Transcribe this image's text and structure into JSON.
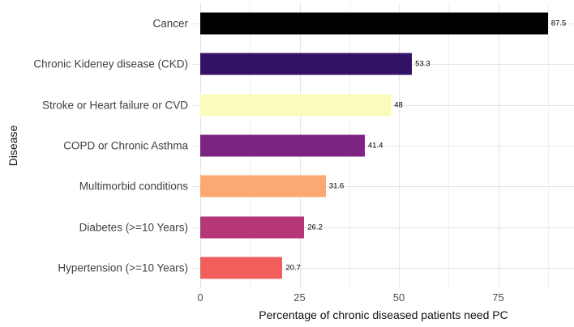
{
  "chart_data": {
    "type": "bar",
    "orientation": "horizontal",
    "title": "",
    "xlabel": "Percentage of chronic diseased patients need PC",
    "ylabel": "Disease",
    "categories": [
      "Cancer",
      "Chronic Kideney disease (CKD)",
      "Stroke or Heart failure or CVD",
      "COPD or Chronic Asthma",
      "Multimorbid conditions",
      "Diabetes (>=10 Years)",
      "Hypertension (>=10 Years)"
    ],
    "values": [
      87.5,
      53.3,
      48,
      41.4,
      31.6,
      26.2,
      20.7
    ],
    "value_labels": [
      "87.5",
      "53.3",
      "48",
      "41.4",
      "31.6",
      "26.2",
      "20.7"
    ],
    "bar_colors": [
      "#000000",
      "#331166",
      "#fbfcbb",
      "#7d2482",
      "#fca872",
      "#b53778",
      "#f15e5b"
    ],
    "x_ticks": [
      0,
      25,
      50,
      75
    ],
    "x_tick_labels": [
      "0",
      "25",
      "50",
      "75"
    ],
    "x_minor_ticks": [
      12.5,
      37.5,
      62.5,
      87.5
    ],
    "xlim": [
      0,
      94
    ],
    "grid": true,
    "legend": "none",
    "grid_major_color": "#e4e4e4",
    "grid_minor_color": "#f0f0f0",
    "background_color": "#ffffff"
  }
}
